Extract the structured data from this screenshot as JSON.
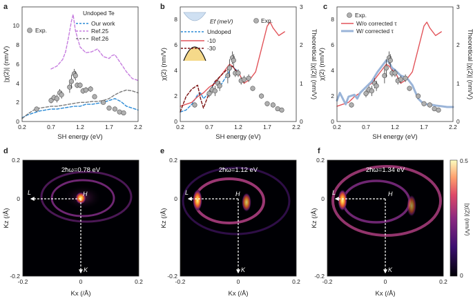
{
  "chart_data": [
    {
      "id": "a",
      "type": "line",
      "panel_label": "a",
      "xlabel": "SH energy (eV)",
      "ylabel": "|χ(2)| (nm/V)",
      "xlim": [
        0.2,
        2.2
      ],
      "ylim": [
        0,
        12
      ],
      "xticks": [
        "0.2",
        "0.7",
        "1.2",
        "1.7",
        "2.2"
      ],
      "yticks": [
        "0",
        "2",
        "4",
        "6",
        "8",
        "10"
      ],
      "legend_title": "Undoped Te",
      "series": [
        {
          "name": "Exp.",
          "kind": "points",
          "color": "#b0b0b0",
          "x": [
            0.45,
            0.7,
            0.75,
            0.8,
            0.85,
            0.88,
            1.02,
            1.05,
            1.1,
            1.12,
            1.15,
            1.2,
            1.25,
            1.3,
            1.38,
            1.45,
            1.6,
            1.7,
            1.8,
            1.88,
            1.95
          ],
          "y": [
            1.3,
            2.2,
            2.5,
            2.4,
            3.0,
            2.8,
            3.6,
            4.2,
            5.0,
            4.8,
            3.8,
            3.8,
            3.2,
            3.3,
            3.4,
            2.6,
            2.0,
            1.4,
            1.3,
            1.0,
            0.9
          ],
          "err": [
            0.2,
            0.3,
            0.3,
            0.4,
            0.4,
            0.4,
            0.6,
            0.7,
            0.5,
            0.5,
            0.3,
            0.3,
            0.3,
            0.3,
            0.3,
            0.2,
            0.2,
            0.2,
            0.2,
            0.1,
            0.1
          ]
        },
        {
          "name": "Our work",
          "kind": "dashed",
          "color": "#2a8ad6",
          "x": [
            0.2,
            0.3,
            0.4,
            0.5,
            0.6,
            0.7,
            0.8,
            0.9,
            1.0,
            1.1,
            1.2,
            1.3,
            1.4,
            1.5,
            1.6,
            1.7,
            1.8,
            1.9,
            2.0,
            2.1,
            2.2
          ],
          "y": [
            0.4,
            0.7,
            0.9,
            1.1,
            1.2,
            1.3,
            1.3,
            1.4,
            1.5,
            1.6,
            1.6,
            1.8,
            1.8,
            1.9,
            2.0,
            2.2,
            2.4,
            2.1,
            1.6,
            1.4,
            1.2
          ]
        },
        {
          "name": "Ref.25",
          "kind": "dashed",
          "color": "#c67ddf",
          "x": [
            0.7,
            0.8,
            0.9,
            0.95,
            1.0,
            1.05,
            1.08,
            1.12,
            1.2,
            1.3,
            1.4,
            1.5,
            1.6,
            1.7,
            1.75,
            1.8,
            1.9,
            2.0,
            2.1,
            2.2
          ],
          "y": [
            5.5,
            5.8,
            6.5,
            7.3,
            8.8,
            10.5,
            11.2,
            9.5,
            7.8,
            7.2,
            7.3,
            7.6,
            6.8,
            6.6,
            6.9,
            7.0,
            6.1,
            5.2,
            4.5,
            4.3
          ]
        },
        {
          "name": "Ref.26",
          "kind": "dashed",
          "color": "#7a7a7a",
          "x": [
            0.2,
            0.3,
            0.4,
            0.5,
            0.6,
            0.7,
            0.8,
            0.9,
            1.0,
            1.1,
            1.2,
            1.3,
            1.4,
            1.5,
            1.6,
            1.7,
            1.8,
            1.9,
            2.0,
            2.1,
            2.2
          ],
          "y": [
            0.3,
            0.8,
            1.2,
            1.4,
            1.5,
            1.6,
            1.6,
            1.7,
            1.8,
            1.9,
            2.0,
            2.0,
            2.1,
            2.1,
            2.2,
            2.4,
            2.8,
            3.1,
            3.3,
            3.2,
            3.0
          ]
        }
      ]
    },
    {
      "id": "b",
      "type": "line",
      "panel_label": "b",
      "xlabel": "SH energy (eV)",
      "ylabel": "χ(2) (nm/V)",
      "ylabel_right": "Theoretical |χ(2)| (nm/V)",
      "xlim": [
        0.2,
        2.2
      ],
      "ylim": [
        0,
        9
      ],
      "ylim_right": [
        0,
        3
      ],
      "xticks": [
        "0.2",
        "0.7",
        "1.2",
        "1.7",
        "2.2"
      ],
      "yticks": [
        "0",
        "2",
        "4",
        "6",
        "8"
      ],
      "yticks_right": [
        "0",
        "1",
        "2",
        "3"
      ],
      "legend_title": "Ef (meV)",
      "series": [
        {
          "name": "Exp.",
          "kind": "points",
          "color": "#b0b0b0",
          "x": [
            0.45,
            0.7,
            0.75,
            0.8,
            0.85,
            0.88,
            1.02,
            1.05,
            1.1,
            1.12,
            1.15,
            1.2,
            1.25,
            1.3,
            1.38,
            1.45,
            1.6,
            1.7,
            1.8,
            1.88,
            1.95
          ],
          "y": [
            1.3,
            2.2,
            2.5,
            2.4,
            3.0,
            2.8,
            3.6,
            4.2,
            5.0,
            4.8,
            3.8,
            3.8,
            3.2,
            3.3,
            3.4,
            2.6,
            2.0,
            1.4,
            1.3,
            1.0,
            0.9
          ],
          "err": [
            0.2,
            0.3,
            0.3,
            0.4,
            0.4,
            0.4,
            0.6,
            0.7,
            0.5,
            0.5,
            0.3,
            0.3,
            0.3,
            0.3,
            0.3,
            0.2,
            0.2,
            0.2,
            0.2,
            0.1,
            0.1
          ]
        },
        {
          "name": "Undoped",
          "kind": "dashed",
          "axis": "right",
          "color": "#2a8ad6",
          "x": [
            0.2,
            0.3,
            0.4,
            0.5,
            0.55,
            0.6,
            0.7,
            0.8,
            0.85,
            0.9,
            1.0,
            1.1,
            1.2
          ],
          "y": [
            0.25,
            0.3,
            0.45,
            0.7,
            0.75,
            0.6,
            0.75,
            1.05,
            1.0,
            0.95,
            1.2,
            1.45,
            1.3
          ]
        },
        {
          "name": "-10",
          "kind": "solid",
          "axis": "right",
          "color": "#e2545a",
          "x": [
            0.2,
            0.3,
            0.4,
            0.5,
            0.6,
            0.7,
            0.8,
            0.9,
            1.0,
            1.05,
            1.1,
            1.15,
            1.2,
            1.3,
            1.4,
            1.5,
            1.6,
            1.65,
            1.7,
            1.75,
            1.8,
            1.9,
            2.0
          ],
          "y": [
            0.4,
            0.45,
            0.5,
            0.65,
            0.75,
            0.9,
            1.0,
            1.2,
            1.4,
            1.5,
            1.45,
            1.35,
            1.3,
            1.0,
            1.1,
            1.3,
            1.9,
            2.2,
            2.5,
            2.6,
            2.45,
            2.25,
            2.35
          ]
        },
        {
          "name": "-30",
          "kind": "dashed",
          "axis": "right",
          "color": "#7a1010",
          "x": [
            0.2,
            0.3,
            0.4,
            0.5,
            0.55,
            0.6,
            0.7,
            0.8,
            0.9,
            1.0,
            1.1,
            1.2
          ],
          "y": [
            0.25,
            0.65,
            0.85,
            0.95,
            0.6,
            0.35,
            0.75,
            1.05,
            1.2,
            1.35,
            1.45,
            1.25
          ]
        }
      ]
    },
    {
      "id": "c",
      "type": "line",
      "panel_label": "c",
      "xlabel": "SH energy (eV)",
      "ylabel": "χ(2) (nm/V)",
      "ylabel_right": "Theoretical |χ(2)| (nm/V)",
      "xlim": [
        0.2,
        2.2
      ],
      "ylim": [
        0,
        9
      ],
      "ylim_right": [
        0,
        3
      ],
      "xticks": [
        "0.2",
        "0.7",
        "1.2",
        "1.7",
        "2.2"
      ],
      "yticks": [
        "0",
        "2",
        "4",
        "6",
        "8"
      ],
      "yticks_right": [
        "0",
        "1",
        "2",
        "3"
      ],
      "series": [
        {
          "name": "Exp.",
          "kind": "points",
          "color": "#b0b0b0",
          "x": [
            0.45,
            0.7,
            0.75,
            0.8,
            0.85,
            0.88,
            1.02,
            1.05,
            1.1,
            1.12,
            1.15,
            1.2,
            1.25,
            1.3,
            1.38,
            1.45,
            1.6,
            1.7,
            1.8,
            1.88,
            1.95
          ],
          "y": [
            1.3,
            2.2,
            2.5,
            2.4,
            3.0,
            2.8,
            3.6,
            4.2,
            5.0,
            4.8,
            3.8,
            3.8,
            3.2,
            3.3,
            3.4,
            2.6,
            2.0,
            1.4,
            1.3,
            1.0,
            0.9
          ],
          "err": [
            0.2,
            0.3,
            0.3,
            0.4,
            0.4,
            0.4,
            0.6,
            0.7,
            0.5,
            0.5,
            0.3,
            0.3,
            0.3,
            0.3,
            0.3,
            0.2,
            0.2,
            0.2,
            0.2,
            0.1,
            0.1
          ]
        },
        {
          "name": "W/o corrected τ",
          "kind": "solid",
          "axis": "right",
          "color": "#e2545a",
          "x": [
            0.2,
            0.3,
            0.4,
            0.5,
            0.6,
            0.7,
            0.8,
            0.9,
            1.0,
            1.05,
            1.1,
            1.15,
            1.2,
            1.3,
            1.4,
            1.5,
            1.6,
            1.65,
            1.7,
            1.75,
            1.8,
            1.9,
            2.0
          ],
          "y": [
            0.4,
            0.45,
            0.5,
            0.65,
            0.75,
            0.9,
            1.0,
            1.2,
            1.4,
            1.5,
            1.45,
            1.35,
            1.3,
            1.0,
            1.1,
            1.3,
            1.9,
            2.2,
            2.5,
            2.6,
            2.45,
            2.25,
            2.35
          ]
        },
        {
          "name": "W/ corrected τ",
          "kind": "thick",
          "axis": "right",
          "color": "#9ab4d8",
          "x": [
            0.2,
            0.25,
            0.3,
            0.35,
            0.4,
            0.5,
            0.55,
            0.6,
            0.7,
            0.8,
            0.9,
            1.0,
            1.05,
            1.1,
            1.15,
            1.2,
            1.3,
            1.4,
            1.5,
            1.6,
            1.7,
            1.8,
            1.9,
            2.0,
            2.1,
            2.2
          ],
          "y": [
            0.55,
            0.75,
            0.6,
            0.45,
            0.65,
            0.7,
            0.6,
            0.75,
            0.9,
            1.05,
            1.3,
            1.5,
            1.6,
            1.55,
            1.4,
            1.35,
            1.2,
            1.15,
            0.95,
            0.6,
            0.45,
            0.45,
            0.42,
            0.4,
            0.38,
            0.38
          ]
        }
      ]
    },
    {
      "id": "d",
      "type": "heatmap",
      "panel_label": "d",
      "annotation": "2ħω=0.78 eV",
      "xlabel": "Kx (/Å)",
      "ylabel": "Kz (/Å)",
      "xlim": [
        -0.2,
        0.2
      ],
      "ylim": [
        -0.2,
        0.2
      ],
      "xticks": [
        "-0.2",
        "0",
        "0.2"
      ],
      "yticks": [
        "-0.2",
        "0",
        "0.2"
      ],
      "point_labels": [
        "L",
        "H",
        "K"
      ]
    },
    {
      "id": "e",
      "type": "heatmap",
      "panel_label": "e",
      "annotation": "2ħω=1.12 eV",
      "xlabel": "Kx (/Å)",
      "ylabel": "Kz (/Å)",
      "xlim": [
        -0.2,
        0.2
      ],
      "ylim": [
        -0.2,
        0.2
      ],
      "xticks": [
        "-0.2",
        "0",
        "0.2"
      ],
      "yticks": [
        "-0.2",
        "0",
        "0.2"
      ],
      "point_labels": [
        "L",
        "H",
        "K"
      ]
    },
    {
      "id": "f",
      "type": "heatmap",
      "panel_label": "f",
      "annotation": "2ħω=1.34 eV",
      "xlabel": "Kx (/Å)",
      "ylabel": "Kz (/Å)",
      "xlim": [
        -0.2,
        0.2
      ],
      "ylim": [
        -0.2,
        0.2
      ],
      "xticks": [
        "-0.2",
        "0",
        "0.2"
      ],
      "yticks": [
        "-0.2",
        "0",
        "0.2"
      ],
      "point_labels": [
        "L",
        "H",
        "K"
      ],
      "colorbar": {
        "label": "|χ(2)| (nm/V)",
        "min": "0",
        "max": "0.5"
      }
    }
  ]
}
